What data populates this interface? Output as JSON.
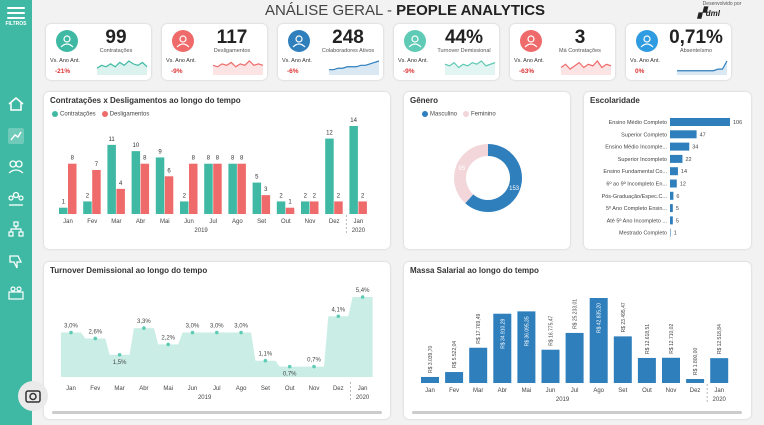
{
  "sidebar": {
    "filter_label": "FILTROS"
  },
  "header": {
    "title_light": "ANÁLISE GERAL -",
    "title_bold": "PEOPLE ANALYTICS",
    "dev_label": "Desenvolvido por",
    "logo_text": "dml"
  },
  "colors": {
    "teal": "#3fb9a3",
    "red": "#ef6a6a",
    "blue": "#2f7fbd",
    "pink": "#f2d6d9"
  },
  "kpis": [
    {
      "value": "99",
      "label": "Contratações",
      "sub": "Vs. Ano Ant.",
      "delta": "-21%",
      "icon_color": "#3fb9a3",
      "trend_color": "#3fb9a3"
    },
    {
      "value": "117",
      "label": "Desligamentos",
      "sub": "Vs. Ano Ant.",
      "delta": "-9%",
      "icon_color": "#ef6a6a",
      "trend_color": "#ef6a6a"
    },
    {
      "value": "248",
      "label": "Colaboradores Ativos",
      "sub": "Vs. Ano Ant.",
      "delta": "-6%",
      "icon_color": "#2f7fbd",
      "trend_color": "#2f7fbd"
    },
    {
      "value": "44%",
      "label": "Turnover Demissional",
      "sub": "Vs. Ano Ant.",
      "delta": "-9%",
      "icon_color": "#5fcab5",
      "trend_color": "#5fcab5"
    },
    {
      "value": "3",
      "label": "Má Contratações",
      "sub": "Vs. Ano Ant.",
      "delta": "-63%",
      "icon_color": "#ef6a6a",
      "trend_color": "#ef6a6a"
    },
    {
      "value": "0,71%",
      "label": "Absenteísmo",
      "sub": "Vs. Ano Ant.",
      "delta": "0%",
      "icon_color": "#2f9be0",
      "trend_color": "#2f7fbd"
    }
  ],
  "chart_data": [
    {
      "type": "bar",
      "title": "Contratações x Desligamentos ao longo do tempo",
      "categories": [
        "Jan",
        "Fev",
        "Mar",
        "Abr",
        "Mai",
        "Jun",
        "Jul",
        "Ago",
        "Set",
        "Out",
        "Nov",
        "Dez",
        "Jan"
      ],
      "group_labels": [
        "2019",
        "2020"
      ],
      "series": [
        {
          "name": "Contratações",
          "color": "#3fb9a3",
          "values": [
            1,
            2,
            11,
            10,
            9,
            2,
            8,
            8,
            5,
            2,
            2,
            12,
            14
          ]
        },
        {
          "name": "Desligamentos",
          "color": "#ef6a6a",
          "values": [
            8,
            7,
            4,
            8,
            6,
            8,
            8,
            8,
            3,
            1,
            2,
            2,
            2
          ]
        }
      ],
      "legend": "top-left"
    },
    {
      "type": "pie",
      "title": "Gênero",
      "series": [
        {
          "name": "Masculino",
          "color": "#2f7fbd",
          "value": 153
        },
        {
          "name": "Feminino",
          "color": "#f2d6d9",
          "value": 95
        }
      ],
      "labels": [
        "153",
        "95"
      ],
      "legend": "top"
    },
    {
      "type": "bar",
      "title": "Escolaridade",
      "orientation": "horizontal",
      "categories": [
        "Ensino Médio Completo",
        "Superior Completo",
        "Ensino Médio Incomple...",
        "Superior Incompleto",
        "Ensino Fundamental Co...",
        "6º ao 9º Incompleto En...",
        "Pós-Graduação/Espec.C...",
        "5º Ano Completo Ensin...",
        "Até 5º Ano Incompleto ...",
        "Mestrado Completo"
      ],
      "values": [
        106,
        47,
        34,
        22,
        14,
        12,
        6,
        5,
        5,
        1
      ]
    },
    {
      "type": "area",
      "title": "Turnover Demissional ao longo do tempo",
      "categories": [
        "Jan",
        "Fev",
        "Mar",
        "Abr",
        "Mai",
        "Jun",
        "Jul",
        "Ago",
        "Set",
        "Out",
        "Nov",
        "Dez",
        "Jan"
      ],
      "group_labels": [
        "2019",
        "2020"
      ],
      "values": [
        3.0,
        2.6,
        1.5,
        3.3,
        2.2,
        3.0,
        3.0,
        3.0,
        1.1,
        0.7,
        0.7,
        4.1,
        5.4
      ],
      "labels": [
        "3,0%",
        "2,6%",
        "1,5%",
        "3,3%",
        "2,2%",
        "3,0%",
        "3,0%",
        "3,0%",
        "1,1%",
        "0,7%",
        "0,7%",
        "4,1%",
        "5,4%"
      ],
      "color": "#9fe0d1"
    },
    {
      "type": "bar",
      "title": "Massa Salarial ao longo do tempo",
      "categories": [
        "Jan",
        "Fev",
        "Mar",
        "Abr",
        "Mai",
        "Jun",
        "Jul",
        "Ago",
        "Set",
        "Out",
        "Nov",
        "Dez",
        "Jan"
      ],
      "group_labels": [
        "2019",
        "2020"
      ],
      "values": [
        3039.7,
        5522.04,
        17769.49,
        34910.29,
        36095.35,
        16775.47,
        25233.01,
        42835.2,
        23495.47,
        12618.51,
        12710.02,
        1800,
        12518.84
      ],
      "labels": [
        "R$ 3.039,70",
        "R$ 5.522,04",
        "R$ 17.769,49",
        "R$ 34.910,29",
        "R$ 36.095,35",
        "R$ 16.775,47",
        "R$ 25.233,01",
        "R$ 42.835,20",
        "R$ 23.495,47",
        "R$ 12.618,51",
        "R$ 12.710,02",
        "R$ 1.800,00",
        "R$ 12.518,84"
      ],
      "color": "#2f7fbd"
    }
  ]
}
